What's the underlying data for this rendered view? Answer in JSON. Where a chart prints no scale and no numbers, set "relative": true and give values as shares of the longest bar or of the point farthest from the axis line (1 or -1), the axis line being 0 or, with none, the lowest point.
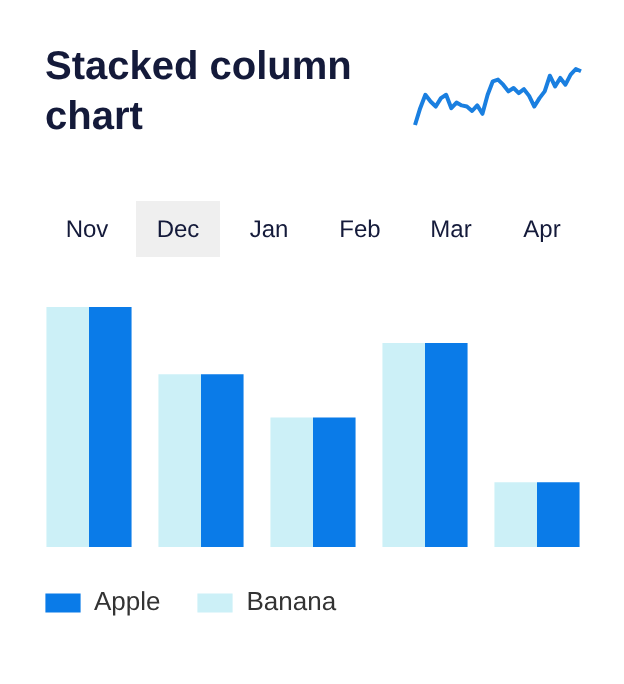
{
  "chart_data": [
    {
      "type": "bar",
      "title": "Stacked column chart",
      "relative": true,
      "categories": [
        null,
        null,
        null,
        null,
        null
      ],
      "annotations": [
        "Nov",
        "Dec",
        "Jan",
        "Feb",
        "Mar",
        "Apr"
      ],
      "series": [
        {
          "name": "Apple",
          "color": "#0a7be8",
          "values": [
            1,
            0.72,
            0.54,
            0.85,
            0.27
          ]
        },
        {
          "name": "Banana",
          "color": "#ccf0f7",
          "values": [
            1,
            0.72,
            0.54,
            0.85,
            0.27
          ]
        }
      ],
      "legend": "bottom",
      "grid": false
    },
    {
      "type": "line",
      "relative": true,
      "color": "#1a7fe0",
      "categories": [
        null,
        null,
        null,
        null,
        null,
        null,
        null,
        null,
        null,
        null,
        null,
        null,
        null,
        null,
        null,
        null,
        null,
        null,
        null,
        null,
        null,
        null,
        null,
        null,
        null,
        null,
        null,
        null,
        null,
        null,
        null,
        null,
        null
      ],
      "values": [
        0,
        0.3,
        0.54,
        0.42,
        0.33,
        0.48,
        0.54,
        0.3,
        0.4,
        0.35,
        0.33,
        0.25,
        0.35,
        0.2,
        0.54,
        0.78,
        0.81,
        0.72,
        0.6,
        0.66,
        0.57,
        0.64,
        0.52,
        0.33,
        0.48,
        0.6,
        0.88,
        0.69,
        0.84,
        0.72,
        0.9,
        1,
        0.96
      ]
    }
  ]
}
